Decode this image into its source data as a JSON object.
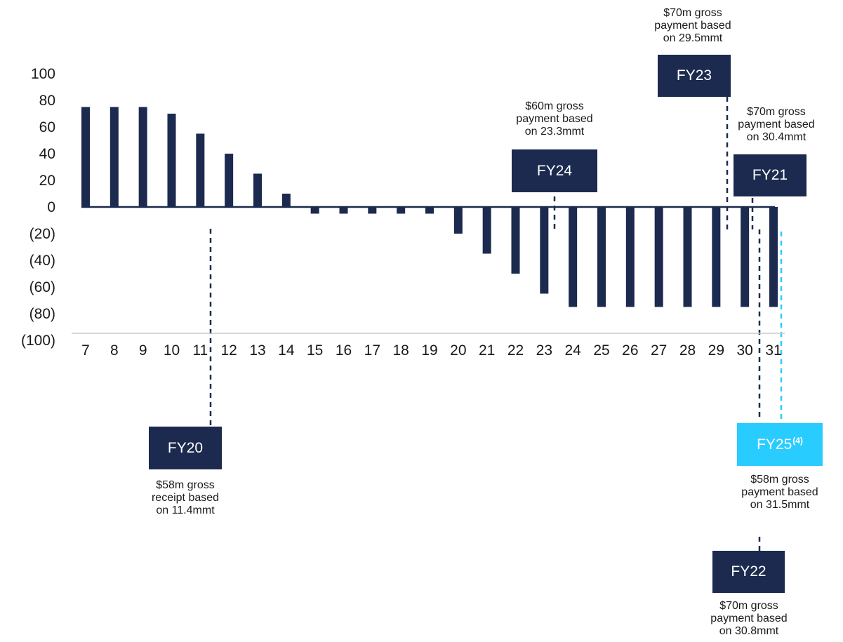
{
  "colors": {
    "bar": "#1b2a4e",
    "axis": "#1b2a4e",
    "grid": "#cccccc",
    "box": "#1b2a4e",
    "highlight": "#29ccff"
  },
  "chart_data": {
    "type": "bar",
    "categories": [
      "7",
      "8",
      "9",
      "10",
      "11",
      "12",
      "13",
      "14",
      "15",
      "16",
      "17",
      "18",
      "19",
      "20",
      "21",
      "22",
      "23",
      "24",
      "25",
      "26",
      "27",
      "28",
      "29",
      "30",
      "31"
    ],
    "values": [
      75,
      75,
      75,
      70,
      55,
      40,
      25,
      10,
      -5,
      -5,
      -5,
      -5,
      -5,
      -20,
      -35,
      -50,
      -65,
      -75,
      -75,
      -75,
      -75,
      -75,
      -75,
      -75,
      -75
    ],
    "ylim": [
      -100,
      100
    ],
    "yticks": [
      100,
      80,
      60,
      40,
      20,
      0,
      -20,
      -40,
      -60,
      -80,
      -100
    ],
    "ytick_labels": [
      "100",
      "80",
      "60",
      "40",
      "20",
      "0",
      "(20)",
      "(40)",
      "(60)",
      "(80)",
      "(100)"
    ],
    "title": "",
    "xlabel": "",
    "ylabel": ""
  },
  "callouts": {
    "fy20": {
      "label": "FY20",
      "note": [
        "$58m gross",
        "receipt based",
        "on 11.4mmt"
      ]
    },
    "fy24": {
      "label": "FY24",
      "note": [
        "$60m gross",
        "payment based",
        "on 23.3mmt"
      ]
    },
    "fy23": {
      "label": "FY23",
      "note": [
        "$70m gross",
        "payment based",
        "on 29.5mmt"
      ]
    },
    "fy21": {
      "label": "FY21",
      "note": [
        "$70m gross",
        "payment based",
        "on 30.4mmt"
      ]
    },
    "fy25": {
      "label": "FY25",
      "sup": "(4)",
      "note": [
        "$58m gross",
        "payment based",
        "on 31.5mmt"
      ]
    },
    "fy22": {
      "label": "FY22",
      "note": [
        "$70m gross",
        "payment based",
        "on 30.8mmt"
      ]
    }
  }
}
